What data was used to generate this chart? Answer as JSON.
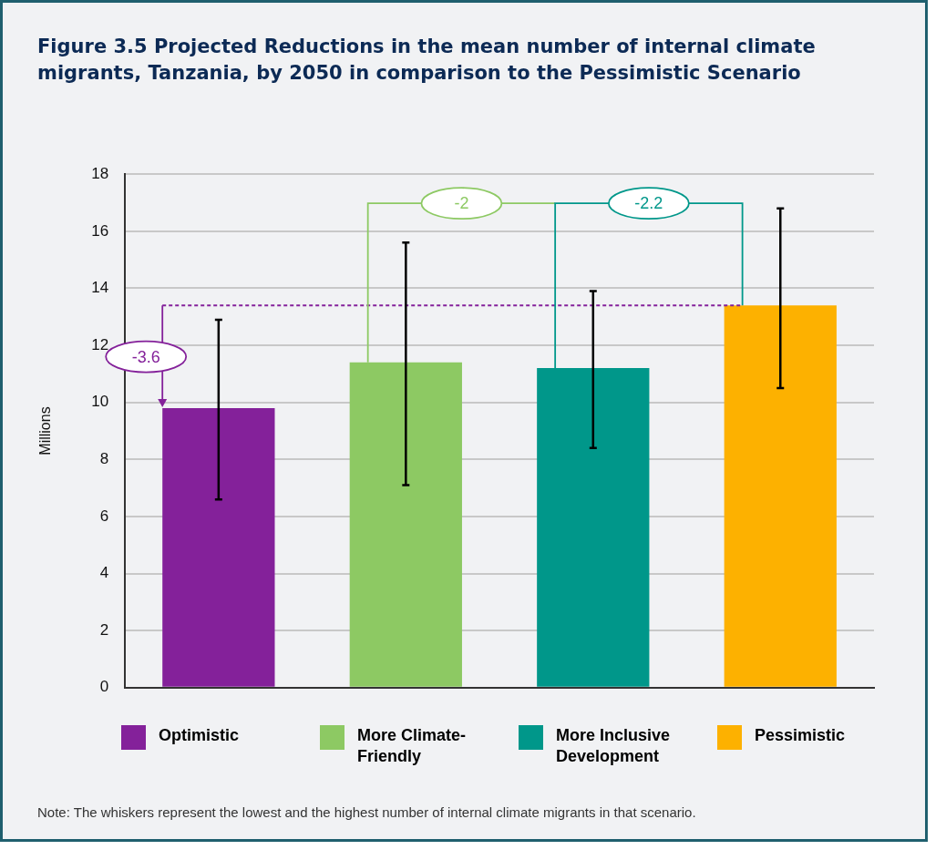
{
  "chart_data": {
    "type": "bar",
    "title": "Figure 3.5   Projected Reductions in the mean number of internal climate migrants, Tanzania, by 2050 in comparison to the Pessimistic Scenario",
    "ylabel": "Millions",
    "categories": [
      "Optimistic",
      "More Climate-Friendly",
      "More Inclusive Development",
      "Pessimistic"
    ],
    "values": [
      9.8,
      11.4,
      11.2,
      13.4
    ],
    "colors": [
      "#84219a",
      "#8dc963",
      "#00978a",
      "#fdb100"
    ],
    "errors": [
      [
        6.6,
        12.9
      ],
      [
        7.1,
        15.6
      ],
      [
        8.4,
        13.9
      ],
      [
        10.5,
        16.8
      ]
    ],
    "ylim": [
      0,
      18
    ],
    "yticks": [
      0,
      2,
      4,
      6,
      8,
      10,
      12,
      14,
      16,
      18
    ],
    "grid": "y",
    "ref_lines": [
      {
        "axis": "y",
        "value": 13.4,
        "color": "#84219a",
        "line_style": "dashed"
      }
    ],
    "annotations": [
      "-3.6",
      "-2",
      "-2.2",
      "Note: The whiskers represent the lowest and the highest number of internal climate migrants in that scenario."
    ]
  }
}
